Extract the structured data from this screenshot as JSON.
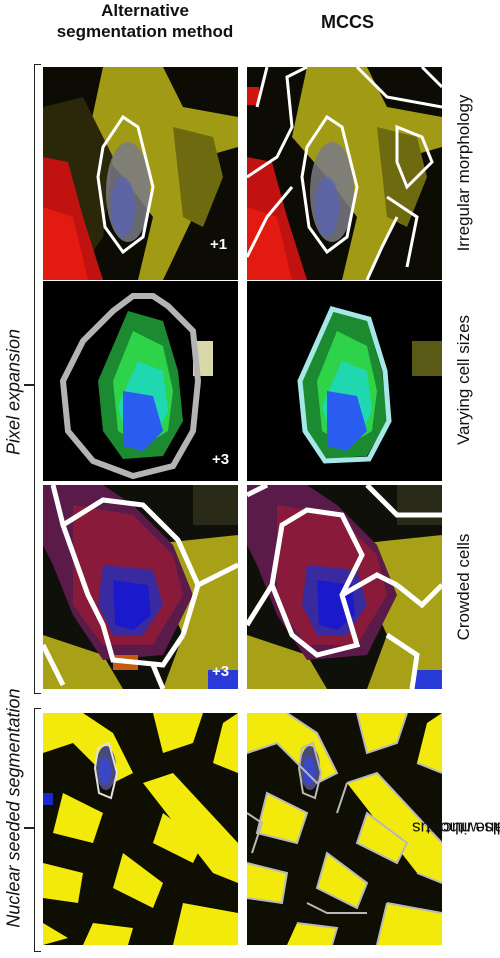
{
  "headers": {
    "alt_line1": "Alternative",
    "alt_line2": "segmentation method",
    "mccs": "MCCS"
  },
  "groups": {
    "pixel_expansion": "Pixel expansion",
    "nuclear_seeded": "Nuclear seeded segmentation"
  },
  "rows": {
    "irregular": "Irregular morphology",
    "varying": "Varying cell sizes",
    "crowded": "Crowded cells",
    "no_nucleus_line1": "Cells without",
    "no_nucleus_line2": "in-plane nucleus"
  },
  "badges": {
    "irregular": "+1",
    "varying": "+3",
    "crowded": "+3"
  },
  "colors": {
    "membrane_yellow": "#a8a016",
    "bright_yellow": "#f2ea0a",
    "nucleus_blue": "#2a5cf0",
    "green": "#2fd34a",
    "red": "#c8120c",
    "outline_white": "#ffffff",
    "outline_gray": "#b4b4b4"
  }
}
